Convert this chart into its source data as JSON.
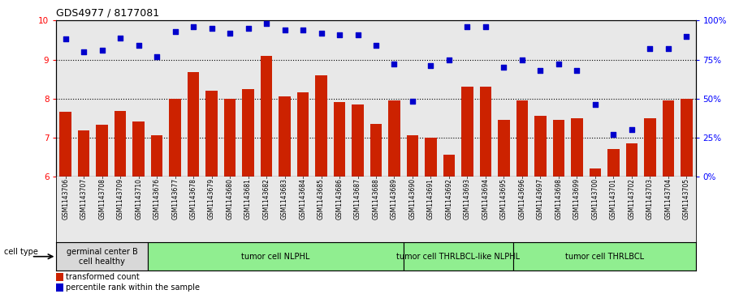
{
  "title": "GDS4977 / 8177081",
  "samples": [
    "GSM1143706",
    "GSM1143707",
    "GSM1143708",
    "GSM1143709",
    "GSM1143710",
    "GSM1143676",
    "GSM1143677",
    "GSM1143678",
    "GSM1143679",
    "GSM1143680",
    "GSM1143681",
    "GSM1143682",
    "GSM1143683",
    "GSM1143684",
    "GSM1143685",
    "GSM1143686",
    "GSM1143687",
    "GSM1143688",
    "GSM1143689",
    "GSM1143690",
    "GSM1143691",
    "GSM1143692",
    "GSM1143693",
    "GSM1143694",
    "GSM1143695",
    "GSM1143696",
    "GSM1143697",
    "GSM1143698",
    "GSM1143699",
    "GSM1143700",
    "GSM1143701",
    "GSM1143702",
    "GSM1143703",
    "GSM1143704",
    "GSM1143705"
  ],
  "bar_values": [
    7.65,
    7.18,
    7.32,
    7.68,
    7.42,
    7.05,
    8.0,
    8.68,
    8.2,
    8.0,
    8.25,
    9.1,
    8.05,
    8.15,
    8.6,
    7.9,
    7.85,
    7.35,
    7.95,
    7.05,
    7.0,
    6.55,
    8.3,
    8.3,
    7.45,
    7.95,
    7.55,
    7.45,
    7.5,
    6.2,
    6.7,
    6.85,
    7.5,
    7.95,
    8.0
  ],
  "dot_values": [
    88,
    80,
    81,
    89,
    84,
    77,
    93,
    96,
    95,
    92,
    95,
    98,
    94,
    94,
    92,
    91,
    91,
    84,
    72,
    48,
    71,
    75,
    96,
    96,
    70,
    75,
    68,
    72,
    68,
    46,
    27,
    30,
    82,
    82,
    90
  ],
  "bar_color": "#cc2200",
  "dot_color": "#0000cc",
  "ylim_left": [
    6,
    10
  ],
  "ylim_right": [
    0,
    100
  ],
  "yticks_left": [
    6,
    7,
    8,
    9,
    10
  ],
  "yticks_right": [
    0,
    25,
    50,
    75,
    100
  ],
  "groups": [
    {
      "label": "germinal center B\ncell healthy",
      "start": 0,
      "end": 5
    },
    {
      "label": "tumor cell NLPHL",
      "start": 5,
      "end": 19
    },
    {
      "label": "tumor cell THRLBCL-like NLPHL",
      "start": 19,
      "end": 25
    },
    {
      "label": "tumor cell THRLBCL",
      "start": 25,
      "end": 35
    }
  ],
  "group_bg": [
    "#d8d8d8",
    "#90ee90",
    "#90ee90",
    "#90ee90"
  ],
  "bar_color_label": "#cc2200",
  "dot_color_label": "#0000cc",
  "cell_type_label": "cell type",
  "legend_bar_label": "transformed count",
  "legend_dot_label": "percentile rank within the sample",
  "plot_bg": "#e8e8e8",
  "fig_bg": "#ffffff",
  "grid_color": "black",
  "grid_linestyle": "dotted",
  "title_fontsize": 9,
  "tick_fontsize": 7.5,
  "xlabel_fontsize": 5.5,
  "group_fontsize": 7,
  "legend_fontsize": 7
}
